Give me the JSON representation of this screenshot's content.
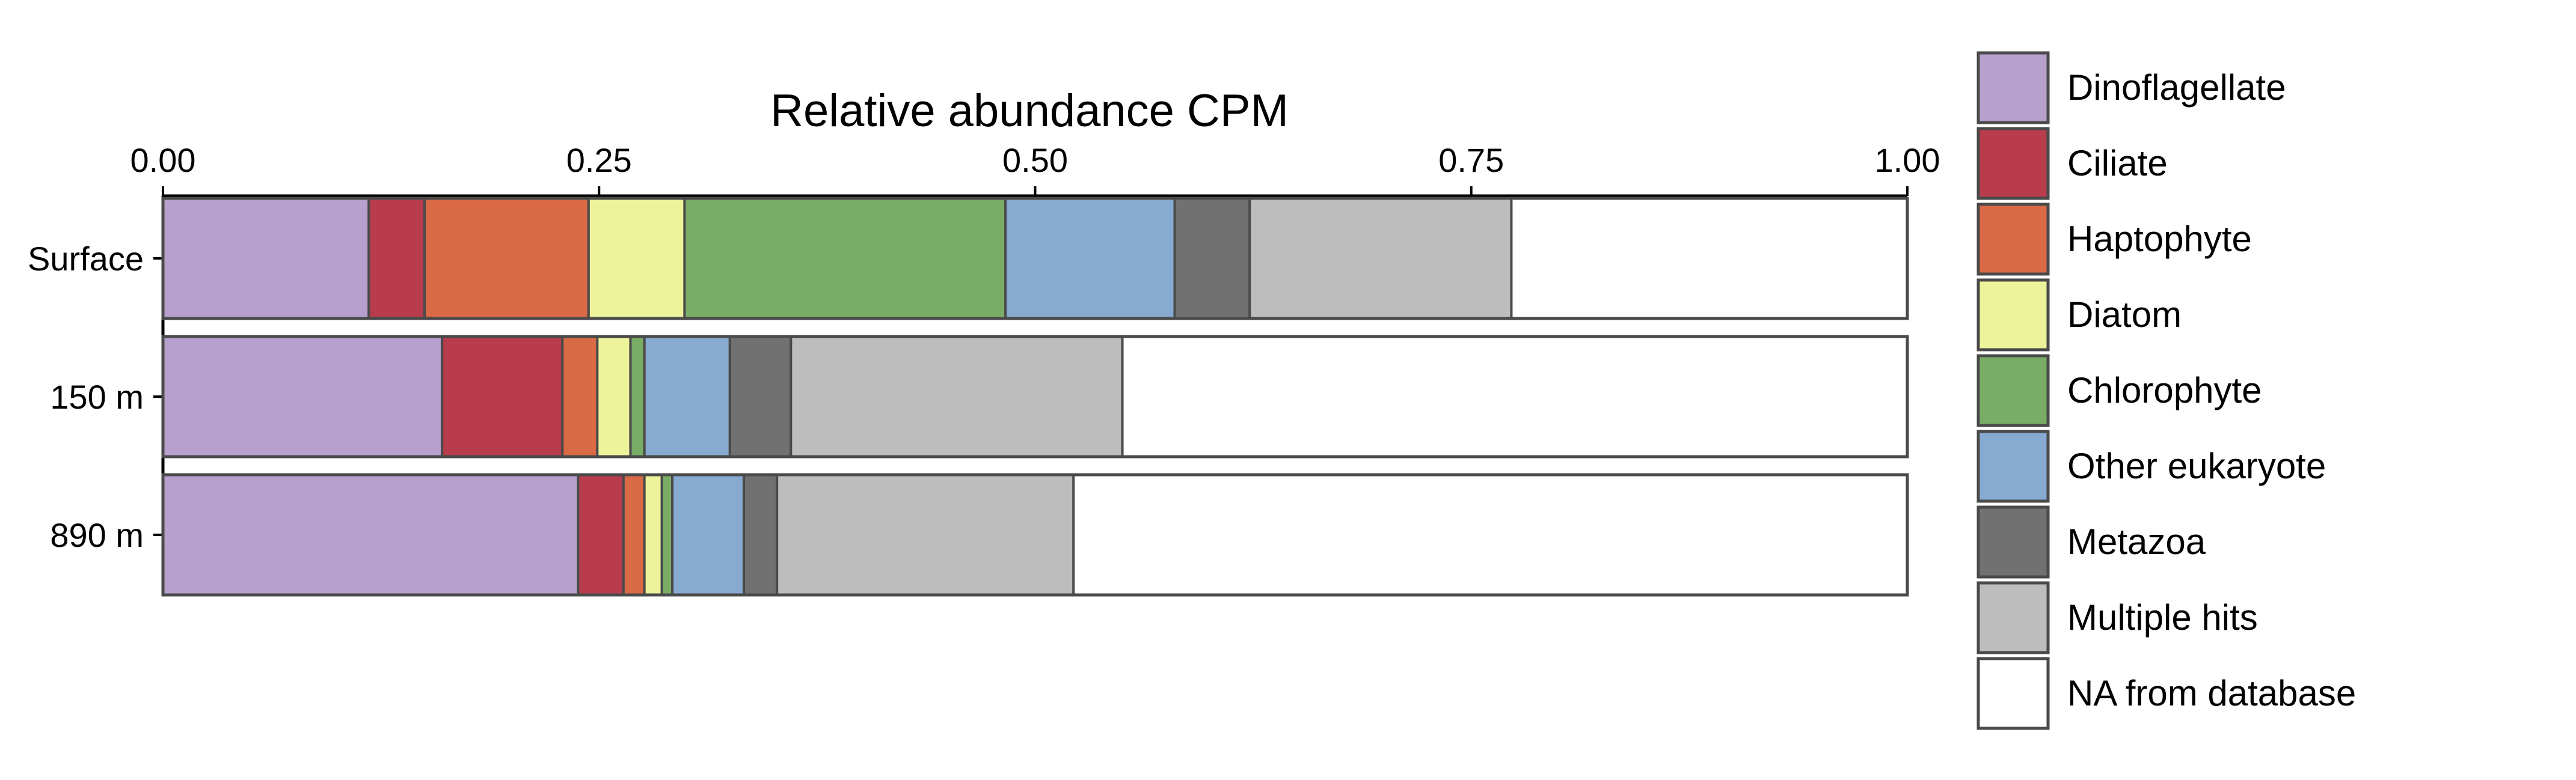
{
  "chart_data": {
    "type": "bar",
    "orientation": "horizontal",
    "stacked": true,
    "title": "Relative abundance CPM",
    "x_axis_position": "top",
    "xlim": [
      0,
      1
    ],
    "x_ticks": [
      "0.00",
      "0.25",
      "0.50",
      "0.75",
      "1.00"
    ],
    "x_tick_values": [
      0,
      0.25,
      0.5,
      0.75,
      1
    ],
    "grid": false,
    "legend_position": "right",
    "categories": [
      "Surface",
      "150 m",
      "890 m"
    ],
    "series": [
      {
        "name": "Dinoflagellate",
        "color": "#b7a0cd",
        "values": [
          0.118,
          0.16,
          0.238
        ]
      },
      {
        "name": "Ciliate",
        "color": "#b83c4c",
        "values": [
          0.032,
          0.069,
          0.026
        ]
      },
      {
        "name": "Haptophyte",
        "color": "#d96a45",
        "values": [
          0.094,
          0.02,
          0.012
        ]
      },
      {
        "name": "Diatom",
        "color": "#ecf39a",
        "values": [
          0.055,
          0.019,
          0.01
        ]
      },
      {
        "name": "Chlorophyte",
        "color": "#79ad66",
        "values": [
          0.184,
          0.008,
          0.006
        ]
      },
      {
        "name": "Other eukaryote",
        "color": "#87aad0",
        "values": [
          0.097,
          0.049,
          0.041
        ]
      },
      {
        "name": "Metazoa",
        "color": "#717171",
        "values": [
          0.043,
          0.035,
          0.019
        ]
      },
      {
        "name": "Multiple hits",
        "color": "#bdbdbd",
        "values": [
          0.15,
          0.19,
          0.17
        ]
      },
      {
        "name": "NA from database",
        "color": "#ffffff",
        "values": [
          0.227,
          0.45,
          0.478
        ]
      }
    ]
  }
}
